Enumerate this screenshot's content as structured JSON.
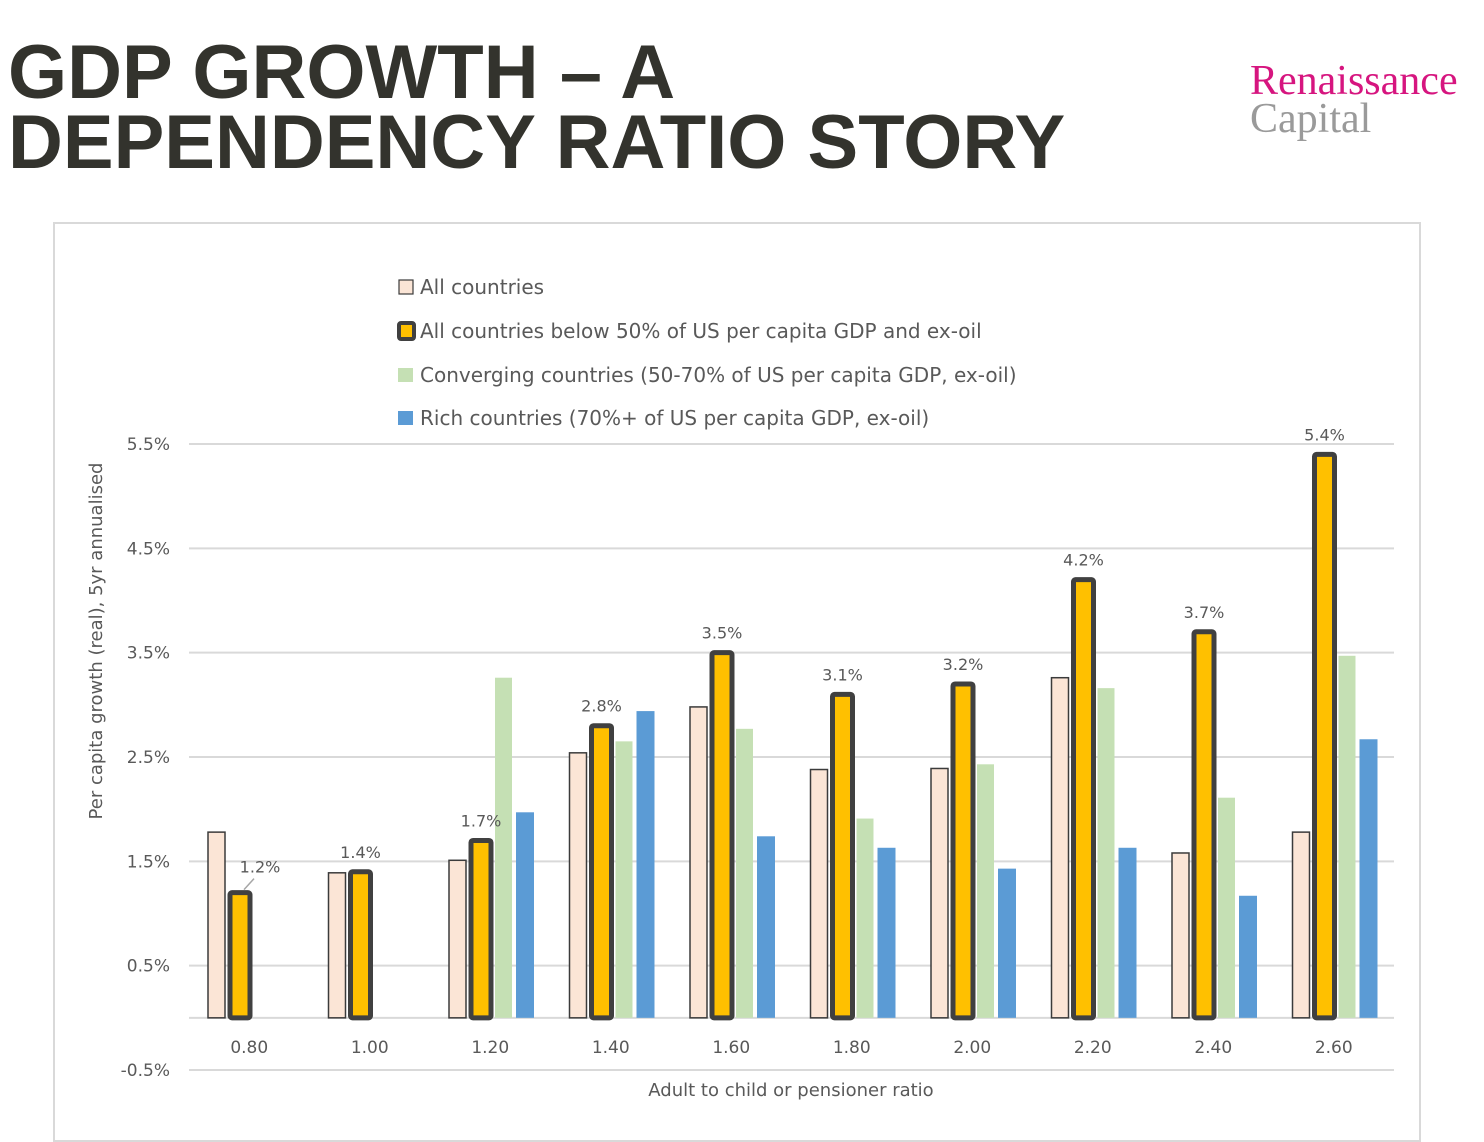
{
  "slide": {
    "title_line1": "GDP GROWTH – A",
    "title_line2": "DEPENDENCY RATIO STORY",
    "logo_line1": "Renaissance",
    "logo_line2": "Capital"
  },
  "chart_data": {
    "type": "bar",
    "title": "",
    "xlabel": "Adult to child or pensioner ratio",
    "ylabel": "Per capita growth (real),  5yr annualised",
    "categories": [
      "0.80",
      "1.00",
      "1.20",
      "1.40",
      "1.60",
      "1.80",
      "2.00",
      "2.20",
      "2.40",
      "2.60"
    ],
    "ylim": [
      -0.5,
      5.5
    ],
    "yticks": [
      5.5,
      4.5,
      3.5,
      2.5,
      1.5,
      0.5,
      -0.5
    ],
    "ytick_labels": [
      "5.5%",
      "4.5%",
      "3.5%",
      "2.5%",
      "1.5%",
      "0.5%",
      "-0.5%"
    ],
    "grid": true,
    "legend_position": "top",
    "series": [
      {
        "name": "All countries",
        "color": "#fbe5d6",
        "outline": "#3b3b3b",
        "values": [
          1.78,
          1.39,
          1.51,
          2.54,
          2.98,
          2.38,
          2.39,
          3.26,
          1.58,
          1.78
        ]
      },
      {
        "name": "All countries below 50% of US per capita GDP and ex-oil",
        "color": "#ffc000",
        "outline": "#404040",
        "values": [
          1.2,
          1.4,
          1.7,
          2.8,
          3.5,
          3.1,
          3.2,
          4.2,
          3.7,
          5.4
        ],
        "data_labels": [
          "1.2%",
          "1.4%",
          "1.7%",
          "2.8%",
          "3.5%",
          "3.1%",
          "3.2%",
          "4.2%",
          "3.7%",
          "5.4%"
        ]
      },
      {
        "name": "Converging countries (50-70% of US per capita GDP, ex-oil)",
        "color": "#c5e0b4",
        "values": [
          null,
          null,
          3.26,
          2.65,
          2.77,
          1.91,
          2.43,
          3.16,
          2.11,
          3.47
        ]
      },
      {
        "name": "Rich countries (70%+ of US per capita GDP, ex-oil)",
        "color": "#5b9bd5",
        "values": [
          null,
          null,
          1.97,
          2.94,
          1.74,
          1.63,
          1.43,
          1.63,
          1.17,
          2.67
        ]
      }
    ]
  }
}
